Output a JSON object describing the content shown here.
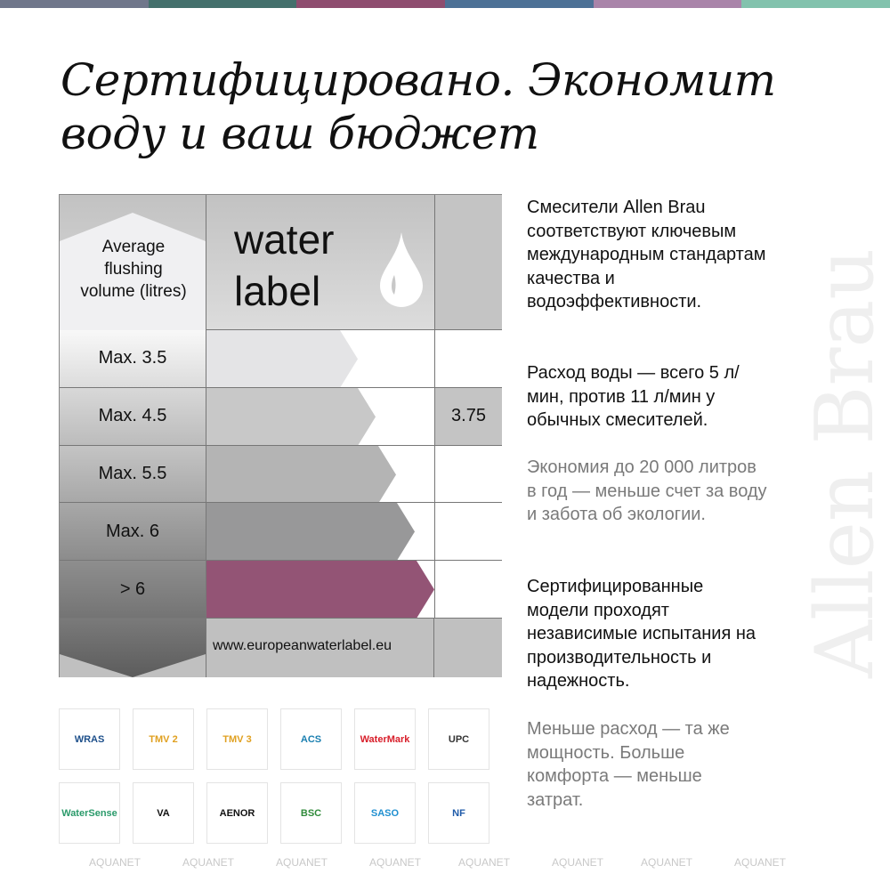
{
  "stripe_colors": [
    "#70778b",
    "#44706c",
    "#8e4d6f",
    "#4d7196",
    "#a984a9",
    "#82c2ad"
  ],
  "title": "Сертифицировано. Экономит воду и ваш бюджет",
  "watermark": "Allen Brau",
  "water_label": {
    "header_left": "Average flushing volume (litres)",
    "title_line1": "water",
    "title_line2": "label",
    "icon": "water-drop-icon",
    "rows": [
      {
        "label": "Max. 3.5",
        "value": ""
      },
      {
        "label": "Max. 4.5",
        "value": "3.75"
      },
      {
        "label": "Max. 5.5",
        "value": ""
      },
      {
        "label": "Max. 6",
        "value": ""
      },
      {
        "label": "> 6",
        "value": ""
      }
    ],
    "url": "www.europeanwaterlabel.eu",
    "highlight_color": "#935475"
  },
  "paragraphs": [
    "Смесители Allen Brau соответствуют ключевым международным стандартам качества и водоэффективности.",
    "Расход воды — всего 5 л/мин, против 11 л/мин у обычных смесителей.",
    "Экономия до 20 000 литров в год — меньше счет за воду и забота об экологии.",
    "Сертифицированные модели проходят независимые испытания на производительность и надежность.",
    "Меньше расход — та же мощность. Больше комфорта — меньше затрат."
  ],
  "logos": [
    "WRAS",
    "TMV 2",
    "TMV 3",
    "ACS",
    "WaterMark",
    "UPC",
    "WaterSense",
    "VA",
    "AENOR",
    "BSC",
    "SASO",
    "NF"
  ],
  "aquanet": "AQUANET"
}
